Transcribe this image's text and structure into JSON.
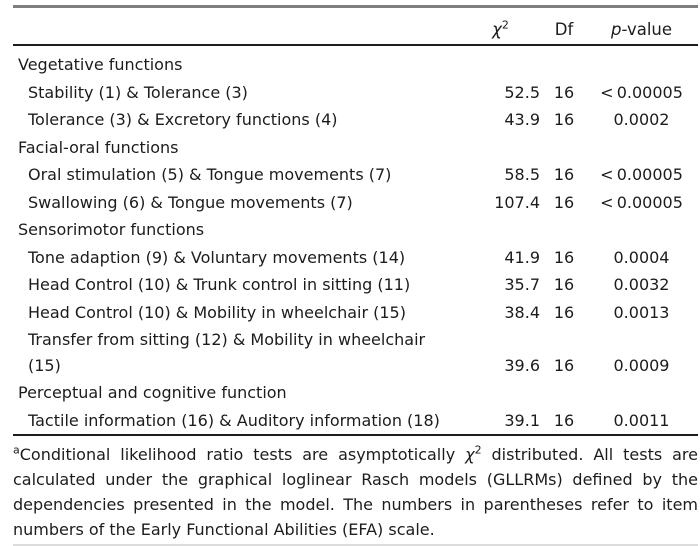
{
  "colors": {
    "text": "#1c1c1c",
    "rule_dark": "#1c1c1c",
    "rule_gray": "#7e7e7e",
    "rule_light": "#dcdcdc",
    "background": "#ffffff"
  },
  "table": {
    "header": {
      "label": "",
      "chi2_base": "χ",
      "chi2_sup": "2",
      "df": "Df",
      "p_italic": "p",
      "p_rest": "-value"
    },
    "groups": [
      {
        "label": "Vegetative functions",
        "items": [
          {
            "label": "Stability (1) & Tolerance (3)",
            "chi2": "52.5",
            "df": "16",
            "p": "< 0.00005"
          },
          {
            "label": "Tolerance (3) & Excretory functions (4)",
            "chi2": "43.9",
            "df": "16",
            "p": "0.0002"
          }
        ]
      },
      {
        "label": "Facial-oral functions",
        "items": [
          {
            "label": "Oral stimulation (5) & Tongue movements (7)",
            "chi2": "58.5",
            "df": "16",
            "p": "< 0.00005"
          },
          {
            "label": "Swallowing (6) & Tongue movements (7)",
            "chi2": "107.4",
            "df": "16",
            "p": "< 0.00005"
          }
        ]
      },
      {
        "label": "Sensorimotor functions",
        "items": [
          {
            "label": "Tone adaption (9) & Voluntary movements (14)",
            "chi2": "41.9",
            "df": "16",
            "p": "0.0004"
          },
          {
            "label": "Head Control (10) & Trunk control in sitting (11)",
            "chi2": "35.7",
            "df": "16",
            "p": "0.0032"
          },
          {
            "label": "Head Control (10) & Mobility in wheelchair (15)",
            "chi2": "38.4",
            "df": "16",
            "p": "0.0013"
          },
          {
            "label": "Transfer from sitting (12) & Mobility in wheelchair\n(15)",
            "chi2": "39.6",
            "df": "16",
            "p": "0.0009"
          }
        ]
      },
      {
        "label": "Perceptual and cognitive function",
        "items": [
          {
            "label": "Tactile information (16) & Auditory information (18)",
            "chi2": "39.1",
            "df": "16",
            "p": "0.0011"
          }
        ]
      }
    ]
  },
  "footnote": {
    "marker": "a",
    "text_before": "Conditional likelihood ratio tests are asymptotically ",
    "chi_base": "χ",
    "chi_sup": "2",
    "text_after": " distributed. All tests are calculated under the graphical loglinear Rasch models (GLLRMs) defined by the dependencies presented in the model. The numbers in parentheses refer to item numbers of the Early Functional Abilities (EFA) scale."
  }
}
